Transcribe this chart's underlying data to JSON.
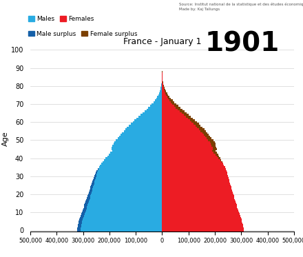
{
  "title": "France - January 1",
  "year": "1901",
  "source": "Source: Institut national de la statistique et des études économiques\nMade by: Kaj Tallungs",
  "ylabel": "Age",
  "colors": {
    "male": "#29ABE2",
    "female": "#ED1C24",
    "male_surplus": "#1560A8",
    "female_surplus": "#7B3F00"
  },
  "xlim": 500000,
  "x_tick_labels": [
    "500,000",
    "400,000",
    "300,000",
    "200,000",
    "100,000",
    "0",
    "100,000",
    "200,000",
    "300,000",
    "400,000",
    "500,000"
  ],
  "y_ticks": [
    0,
    10,
    20,
    30,
    40,
    50,
    60,
    70,
    80,
    90,
    100
  ],
  "ages": [
    0,
    1,
    2,
    3,
    4,
    5,
    6,
    7,
    8,
    9,
    10,
    11,
    12,
    13,
    14,
    15,
    16,
    17,
    18,
    19,
    20,
    21,
    22,
    23,
    24,
    25,
    26,
    27,
    28,
    29,
    30,
    31,
    32,
    33,
    34,
    35,
    36,
    37,
    38,
    39,
    40,
    41,
    42,
    43,
    44,
    45,
    46,
    47,
    48,
    49,
    50,
    51,
    52,
    53,
    54,
    55,
    56,
    57,
    58,
    59,
    60,
    61,
    62,
    63,
    64,
    65,
    66,
    67,
    68,
    69,
    70,
    71,
    72,
    73,
    74,
    75,
    76,
    77,
    78,
    79,
    80,
    81,
    82,
    83,
    84,
    85,
    86,
    87,
    88,
    89,
    90,
    91,
    92,
    93,
    94,
    95,
    96,
    97,
    98,
    99
  ],
  "males": [
    323000,
    322000,
    321000,
    319000,
    318000,
    317000,
    315000,
    312000,
    310000,
    307000,
    304000,
    301000,
    299000,
    297000,
    295000,
    293000,
    291000,
    288000,
    286000,
    284000,
    281000,
    278000,
    276000,
    274000,
    272000,
    269000,
    267000,
    265000,
    263000,
    260000,
    257000,
    254000,
    251000,
    248000,
    244000,
    240000,
    236000,
    231000,
    226000,
    220000,
    214000,
    208000,
    202000,
    196000,
    190000,
    193000,
    191000,
    188000,
    185000,
    181000,
    175000,
    169000,
    163000,
    158000,
    152000,
    146000,
    139000,
    133000,
    126000,
    119000,
    112000,
    105000,
    97000,
    90000,
    82000,
    74000,
    66000,
    59000,
    52000,
    45000,
    39000,
    33000,
    28000,
    23000,
    19000,
    15000,
    12000,
    9500,
    7500,
    5700,
    4200,
    3100,
    2200,
    1600,
    1100,
    750,
    500,
    310,
    185,
    105,
    55,
    27,
    12,
    5,
    2,
    1,
    0,
    0,
    0,
    0
  ],
  "females": [
    310000,
    309000,
    307000,
    306000,
    305000,
    303000,
    301000,
    299000,
    296000,
    294000,
    291000,
    289000,
    287000,
    285000,
    283000,
    281000,
    278000,
    276000,
    274000,
    272000,
    270000,
    268000,
    266000,
    264000,
    262000,
    260000,
    258000,
    256000,
    254000,
    252000,
    250000,
    248000,
    246000,
    244000,
    241000,
    238000,
    235000,
    231000,
    228000,
    224000,
    220000,
    216000,
    212000,
    208000,
    203000,
    207000,
    206000,
    204000,
    202000,
    199000,
    194000,
    188000,
    183000,
    177000,
    172000,
    166000,
    160000,
    153000,
    146000,
    139000,
    132000,
    124000,
    117000,
    109000,
    101000,
    93000,
    85000,
    77000,
    69000,
    61000,
    54000,
    46000,
    40000,
    34000,
    28000,
    23000,
    19000,
    15000,
    11500,
    8700,
    6500,
    4900,
    3600,
    2600,
    1850,
    1300,
    870,
    560,
    345,
    200,
    105,
    52,
    23,
    9,
    3,
    1,
    0,
    0,
    0,
    0
  ]
}
